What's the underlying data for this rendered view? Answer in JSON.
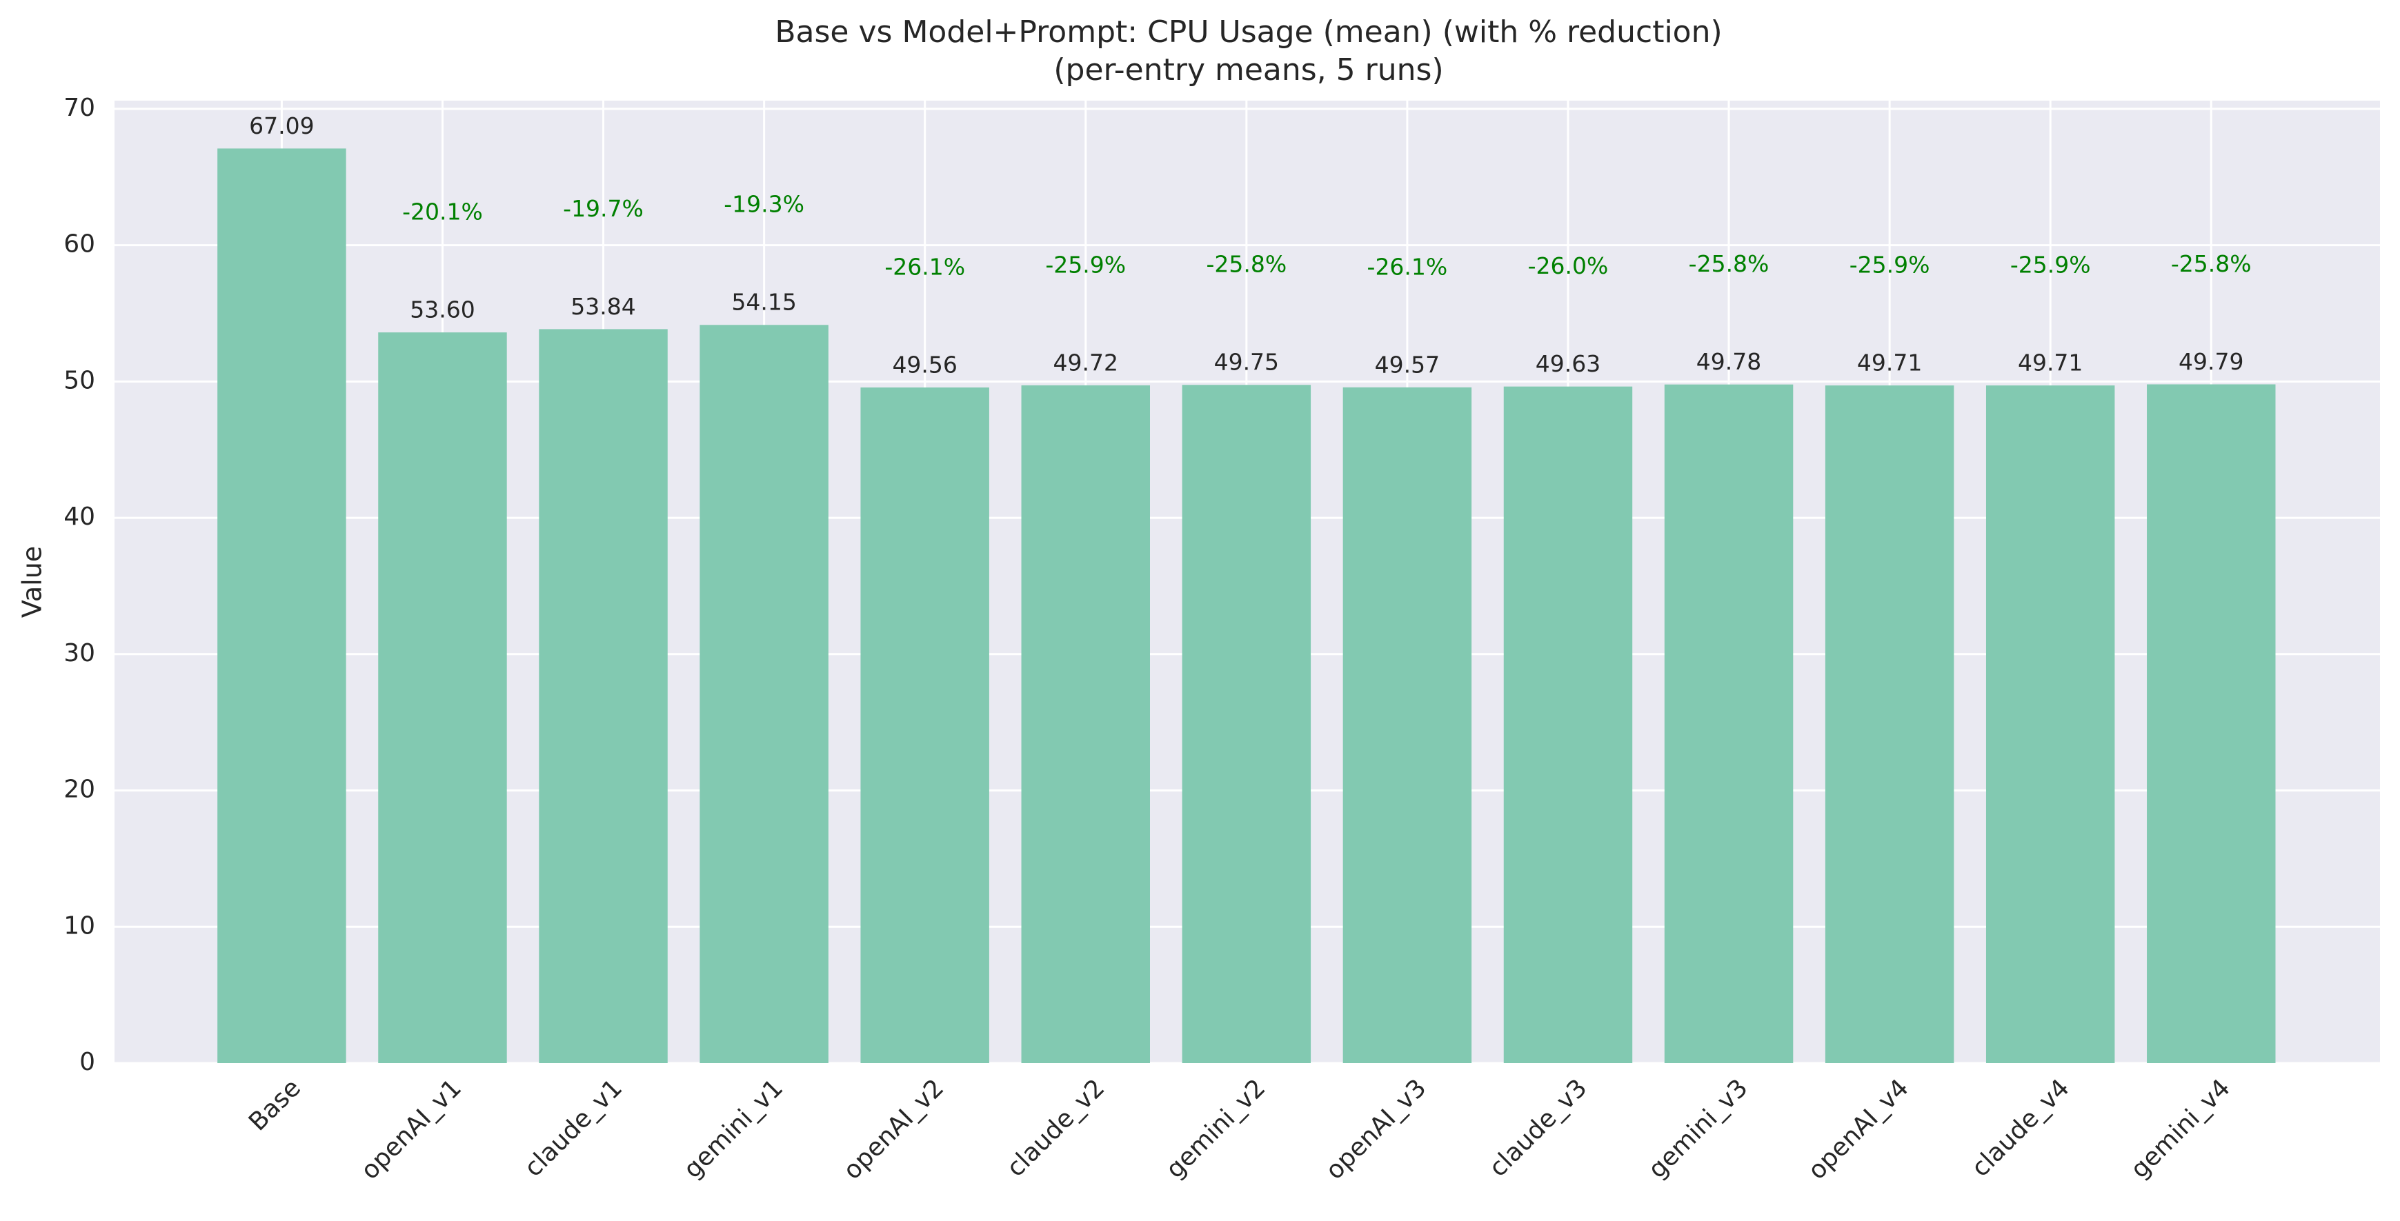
{
  "chart_data": {
    "type": "bar",
    "title": "Base vs Model+Prompt: CPU Usage (mean) (with % reduction)",
    "subtitle": "(per-entry means, 5 runs)",
    "y_label": "Value",
    "categories": [
      "Base",
      "openAI_v1",
      "claude_v1",
      "gemini_v1",
      "openAI_v2",
      "claude_v2",
      "gemini_v2",
      "openAI_v3",
      "claude_v3",
      "gemini_v3",
      "openAI_v4",
      "claude_v4",
      "gemini_v4"
    ],
    "values": [
      67.09,
      53.6,
      53.84,
      54.15,
      49.56,
      49.72,
      49.75,
      49.57,
      49.63,
      49.78,
      49.71,
      49.71,
      49.79
    ],
    "value_labels": [
      "67.09",
      "53.60",
      "53.84",
      "54.15",
      "49.56",
      "49.72",
      "49.75",
      "49.57",
      "49.63",
      "49.78",
      "49.71",
      "49.71",
      "49.79"
    ],
    "reductions": [
      null,
      -20.1,
      -19.7,
      -19.3,
      -26.1,
      -25.9,
      -25.8,
      -26.1,
      -26.0,
      -25.8,
      -25.9,
      -25.9,
      -25.8
    ],
    "reduction_labels": [
      null,
      "-20.1%",
      "-19.7%",
      "-19.3%",
      "-26.1%",
      "-25.9%",
      "-25.8%",
      "-26.1%",
      "-26.0%",
      "-25.8%",
      "-25.9%",
      "-25.9%",
      "-25.8%"
    ],
    "color": "#82c9b1",
    "reduction_color": "#008000",
    "ylim": [
      0,
      70.6
    ],
    "yticks": [
      0,
      10,
      20,
      30,
      40,
      50,
      60,
      70
    ],
    "grid": true
  }
}
